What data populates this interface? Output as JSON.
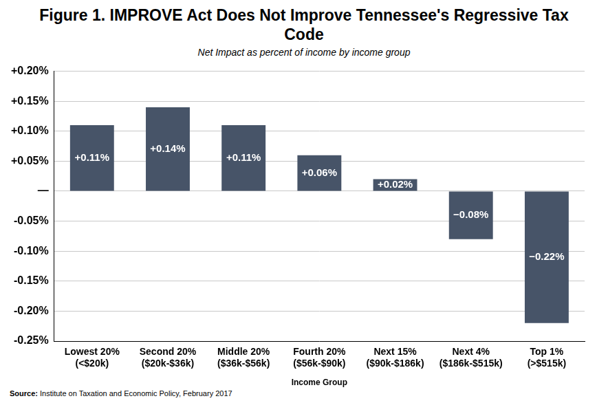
{
  "chart_data": {
    "type": "bar",
    "title": "Figure 1. IMPROVE Act Does Not Improve Tennessee's Regressive Tax Code",
    "subtitle": "Net Impact as percent of income by income group",
    "x_label": "Income Group",
    "source": "Source: Institute on Taxation and Economic Policy, February 2017",
    "categories": [
      [
        "Lowest 20%",
        "(<$20k)"
      ],
      [
        "Second 20%",
        "($20k-$36k)"
      ],
      [
        "Middle 20%",
        "($36k-$56k)"
      ],
      [
        "Fourth 20%",
        "($56k-$90k)"
      ],
      [
        "Next 15%",
        "($90k-$186k)"
      ],
      [
        "Next 4%",
        "($186k-$515k)"
      ],
      [
        "Top 1%",
        "(>$515k)"
      ]
    ],
    "values": [
      0.11,
      0.14,
      0.11,
      0.06,
      0.02,
      -0.08,
      -0.22
    ],
    "value_labels": [
      "+0.11%",
      "+0.14%",
      "+0.11%",
      "+0.06%",
      "+0.02%",
      "−0.08%",
      "−0.22%"
    ],
    "color": "#475468",
    "ylim": [
      -0.25,
      0.2
    ],
    "yticks": [
      {
        "value": -0.25,
        "label": "-0.25%"
      },
      {
        "value": -0.2,
        "label": "-0.20%"
      },
      {
        "value": -0.15,
        "label": "-0.15%"
      },
      {
        "value": -0.1,
        "label": "-0.10%"
      },
      {
        "value": -0.05,
        "label": "-0.05%"
      },
      {
        "value": 0,
        "label": "—"
      },
      {
        "value": 0.05,
        "label": "+0.05%"
      },
      {
        "value": 0.1,
        "label": "+0.10%"
      },
      {
        "value": 0.15,
        "label": "+0.15%"
      },
      {
        "value": 0.2,
        "label": "+0.20%"
      }
    ],
    "grid": true,
    "data_labels": true
  }
}
